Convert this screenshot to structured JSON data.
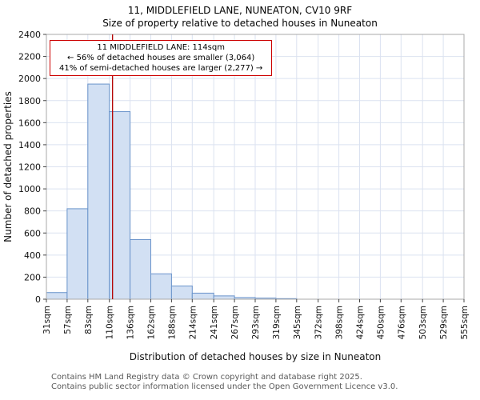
{
  "header": {
    "title": "11, MIDDLEFIELD LANE, NUNEATON, CV10 9RF",
    "subtitle": "Size of property relative to detached houses in Nuneaton"
  },
  "annotation": {
    "line1": "11 MIDDLEFIELD LANE: 114sqm",
    "line2": "← 56% of detached houses are smaller (3,064)",
    "line3": "41% of semi-detached houses are larger (2,277) →"
  },
  "chart_data": {
    "type": "bar",
    "title": "Size of property relative to detached houses in Nuneaton",
    "xlabel": "Distribution of detached houses by size in Nuneaton",
    "ylabel": "Number of detached properties",
    "ylim": [
      0,
      2400
    ],
    "ytick_step": 200,
    "edges": [
      31,
      57,
      83,
      110,
      136,
      162,
      188,
      214,
      241,
      267,
      293,
      319,
      345,
      372,
      398,
      424,
      450,
      476,
      503,
      529,
      555
    ],
    "tick_labels": [
      "31sqm",
      "57sqm",
      "83sqm",
      "110sqm",
      "136sqm",
      "162sqm",
      "188sqm",
      "214sqm",
      "241sqm",
      "267sqm",
      "293sqm",
      "319sqm",
      "345sqm",
      "372sqm",
      "398sqm",
      "424sqm",
      "450sqm",
      "476sqm",
      "503sqm",
      "529sqm",
      "555sqm"
    ],
    "values": [
      60,
      820,
      1950,
      1700,
      540,
      230,
      120,
      55,
      30,
      15,
      10,
      5,
      0,
      0,
      0,
      0,
      0,
      0,
      0,
      0
    ],
    "marker": {
      "value": 114,
      "color": "#b40000"
    },
    "bar_fill": "#d2e0f3",
    "bar_stroke": "#6a94cb",
    "grid_color": "#dbe2f0",
    "plot_bg": "#ffffff",
    "spine_color": "#a8a8a8",
    "tick_color": "#444444",
    "grid": true,
    "legend": "none"
  },
  "footer": {
    "line1": "Contains HM Land Registry data © Crown copyright and database right 2025.",
    "line2": "Contains public sector information licensed under the Open Government Licence v3.0."
  }
}
